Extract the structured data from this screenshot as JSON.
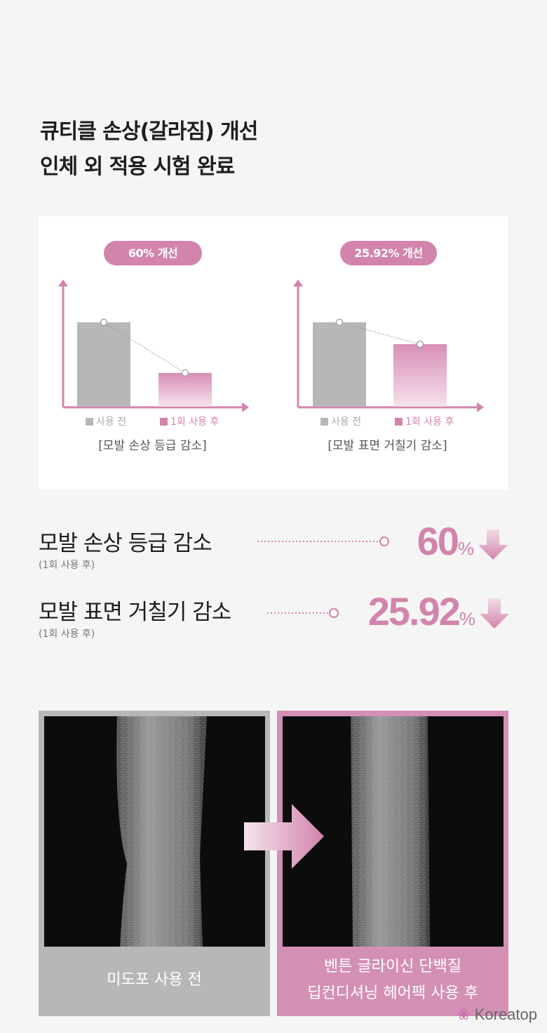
{
  "title": {
    "line1": "큐티클 손상(갈라짐) 개선",
    "line2": "인체 외 적용 시험 완료"
  },
  "colors": {
    "accent": "#d284ac",
    "before_bar": "#b7b7b7",
    "background": "#f5f5f5"
  },
  "chart_data": [
    {
      "type": "bar",
      "title": "[모발 손상 등급 감소]",
      "badge": "60% 개선",
      "categories": [
        "사용 전",
        "1회 사용 후"
      ],
      "values": [
        100,
        40
      ]
    },
    {
      "type": "bar",
      "title": "[모발 표면 거칠기 감소]",
      "badge": "25.92% 개선",
      "categories": [
        "사용 전",
        "1회 사용 후"
      ],
      "values": [
        100,
        74.08
      ]
    }
  ],
  "results": [
    {
      "label": "모발 손상 등급 감소",
      "sub": "(1회 사용 후)",
      "value": "60",
      "unit": "%",
      "icon": "down-arrow-icon"
    },
    {
      "label": "모발 표면 거칠기 감소",
      "sub": "(1회 사용 후)",
      "value": "25.92",
      "unit": "%",
      "icon": "down-arrow-icon"
    }
  ],
  "photos": {
    "before_caption": "미도포 사용 전",
    "after_caption_line1": "벤튼 글라이신 단백질",
    "after_caption_line2": "딥컨디셔닝 헤어팩 사용 후"
  },
  "watermark": "Koreatop"
}
